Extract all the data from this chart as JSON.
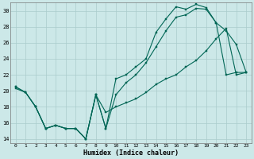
{
  "xlabel": "Humidex (Indice chaleur)",
  "bg_color": "#cce8e8",
  "grid_color": "#aacccc",
  "line_color": "#006655",
  "xlim": [
    -0.5,
    23.5
  ],
  "ylim": [
    13.5,
    31.0
  ],
  "yticks": [
    14,
    16,
    18,
    20,
    22,
    24,
    26,
    28,
    30
  ],
  "xticks": [
    0,
    1,
    2,
    3,
    4,
    5,
    6,
    7,
    8,
    9,
    10,
    11,
    12,
    13,
    14,
    15,
    16,
    17,
    18,
    19,
    20,
    21,
    22,
    23
  ],
  "series1_x": [
    0,
    1,
    2,
    3,
    4,
    5,
    6,
    7,
    8,
    9,
    10,
    11,
    12,
    13,
    14,
    15,
    16,
    17,
    18,
    19,
    20,
    21,
    22,
    23
  ],
  "series1_y": [
    20.5,
    19.8,
    18.0,
    15.3,
    15.7,
    15.3,
    15.3,
    14.0,
    19.5,
    15.3,
    21.5,
    22.0,
    23.0,
    24.0,
    27.3,
    29.0,
    30.5,
    30.2,
    30.8,
    30.4,
    28.5,
    27.5,
    25.8,
    22.3
  ],
  "series2_x": [
    0,
    1,
    2,
    3,
    4,
    5,
    6,
    7,
    8,
    9,
    10,
    11,
    12,
    13,
    14,
    15,
    16,
    17,
    18,
    19,
    20,
    21,
    22,
    23
  ],
  "series2_y": [
    20.5,
    19.8,
    18.0,
    15.3,
    15.7,
    15.3,
    15.3,
    14.0,
    19.5,
    15.3,
    19.5,
    21.0,
    22.0,
    23.5,
    25.5,
    27.5,
    29.2,
    29.5,
    30.3,
    30.2,
    28.5,
    22.0,
    22.3,
    22.3
  ],
  "series3_x": [
    0,
    1,
    2,
    3,
    4,
    5,
    6,
    7,
    8,
    9,
    10,
    11,
    12,
    13,
    14,
    15,
    16,
    17,
    18,
    19,
    20,
    21,
    22,
    23
  ],
  "series3_y": [
    20.3,
    19.8,
    18.0,
    15.3,
    15.7,
    15.3,
    15.3,
    14.0,
    19.5,
    17.3,
    18.0,
    18.5,
    19.0,
    19.8,
    20.8,
    21.5,
    22.0,
    23.0,
    23.8,
    25.0,
    26.5,
    27.8,
    22.0,
    22.3
  ]
}
